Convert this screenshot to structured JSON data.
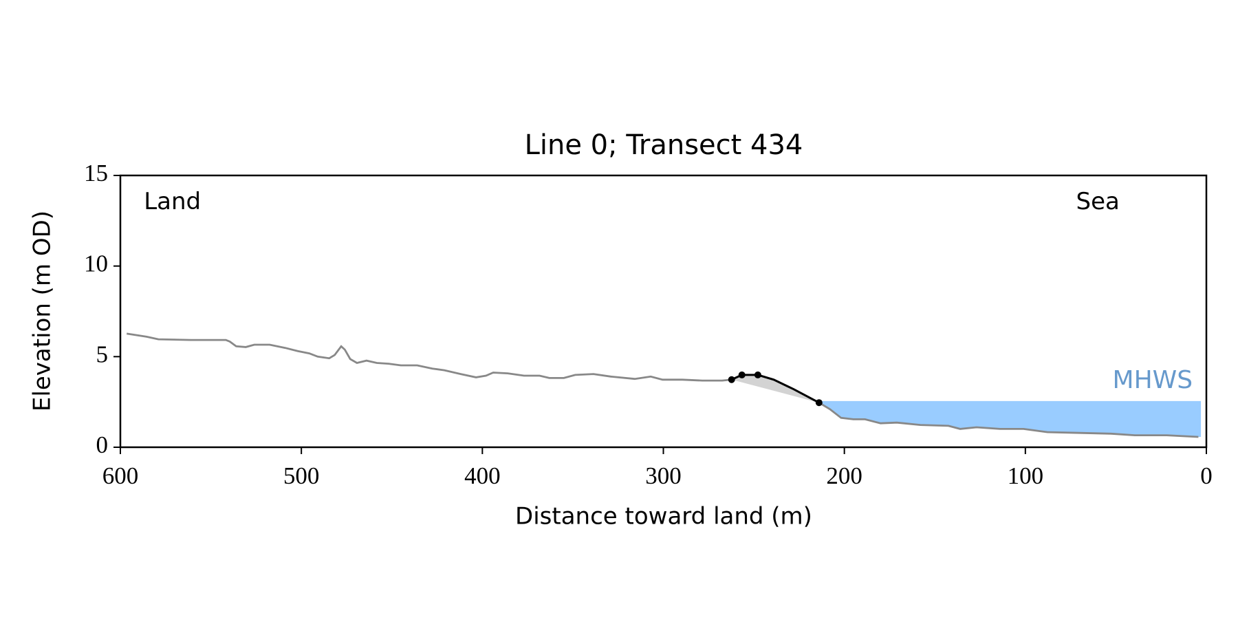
{
  "chart_data": {
    "type": "line",
    "title": "Line 0; Transect 434",
    "xlabel": "Distance toward land (m)",
    "ylabel": "Elevation (m OD)",
    "xlim": [
      600,
      0
    ],
    "ylim": [
      0,
      15
    ],
    "xticks": [
      600,
      500,
      400,
      300,
      200,
      100,
      0
    ],
    "yticks": [
      0,
      5,
      10,
      15
    ],
    "annotations": [
      {
        "text": "Land",
        "x": 587,
        "y": 13.5
      },
      {
        "text": "Sea",
        "x": 72,
        "y": 13.5
      }
    ],
    "mhws": {
      "label": "MHWS",
      "elevation": 2.55,
      "x_start": 213,
      "x_end": 3,
      "color": "#99ccff",
      "label_color": "#6699cc"
    },
    "series": [
      {
        "color": "#888888",
        "x": [
          596.5,
          585.5,
          579,
          561,
          548,
          541.7,
          539.5,
          536,
          530.7,
          526,
          517.5,
          508.8,
          502,
          495.6,
          491,
          484.6,
          481.6,
          478,
          476,
          473,
          469.3,
          464,
          458.3,
          451.8,
          445,
          436,
          427.6,
          421,
          412,
          403.5,
          398,
          394,
          386,
          377,
          368.4,
          363,
          355,
          348.7,
          338.6,
          329,
          315.8,
          307,
          300.4,
          289.5,
          278.5,
          267.5,
          262.3,
          256.6,
          247.8,
          239,
          228,
          214,
          208,
          201.8,
          195,
          188.6,
          180,
          171,
          158,
          142.5,
          136,
          127,
          114,
          101,
          87.7,
          70,
          52.6,
          39.5,
          21.9,
          4.4
        ],
        "values": [
          6.27,
          6.1,
          5.96,
          5.92,
          5.92,
          5.92,
          5.83,
          5.57,
          5.53,
          5.66,
          5.66,
          5.48,
          5.31,
          5.18,
          5.0,
          4.91,
          5.09,
          5.57,
          5.39,
          4.87,
          4.65,
          4.78,
          4.65,
          4.61,
          4.52,
          4.52,
          4.34,
          4.25,
          4.04,
          3.86,
          3.95,
          4.12,
          4.08,
          3.95,
          3.95,
          3.82,
          3.82,
          3.99,
          4.04,
          3.9,
          3.77,
          3.9,
          3.73,
          3.73,
          3.68,
          3.68,
          3.73,
          3.99,
          3.99,
          3.73,
          3.2,
          2.46,
          2.1,
          1.62,
          1.54,
          1.54,
          1.32,
          1.36,
          1.23,
          1.18,
          1.01,
          1.1,
          1.01,
          1.01,
          0.83,
          0.79,
          0.75,
          0.66,
          0.66,
          0.57
        ]
      },
      {
        "color": "#000000",
        "markers": [
          0,
          1,
          2,
          5
        ],
        "shade": "#d3d3d3",
        "x": [
          262.3,
          256.6,
          247.8,
          239,
          228,
          214
        ],
        "values": [
          3.73,
          3.99,
          3.99,
          3.73,
          3.2,
          2.46
        ]
      }
    ]
  }
}
